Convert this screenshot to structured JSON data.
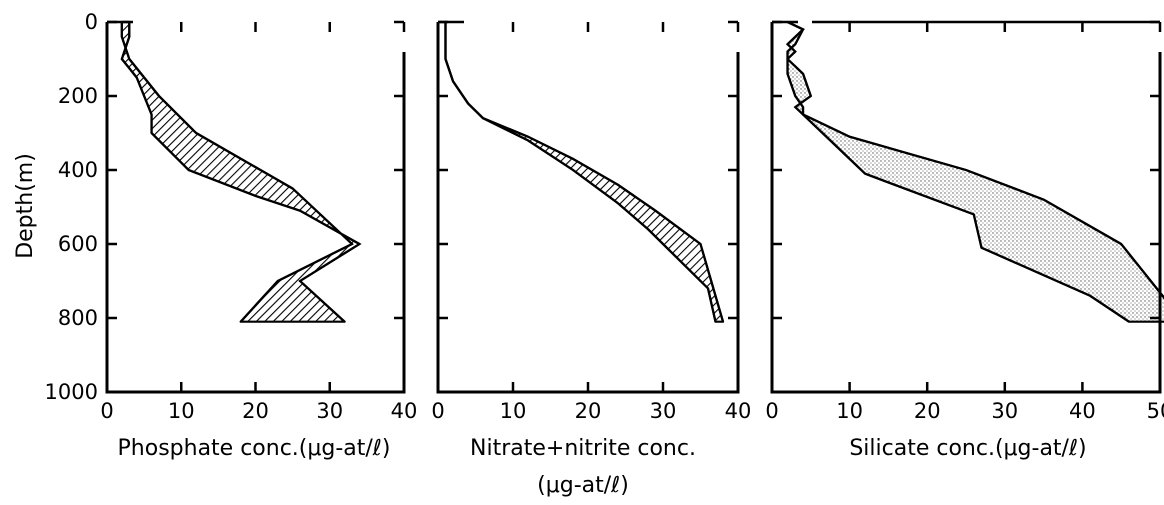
{
  "chart_data": [
    {
      "type": "area",
      "ylabel": "Depth(m)",
      "xlabel": "Phosphate conc.(μg-at/ℓ)",
      "xlim": [
        0,
        40
      ],
      "ylim": [
        1000,
        0
      ],
      "xticks": [
        "0",
        "10",
        "20",
        "30",
        "40"
      ],
      "yticks": [
        "0",
        "200",
        "400",
        "600",
        "800",
        "1000"
      ],
      "fill": "hatch",
      "series": [
        {
          "x": [
            2,
            3,
            3,
            2,
            4,
            6,
            6,
            11,
            20,
            26,
            34,
            26,
            32
          ],
          "y": [
            0,
            0,
            40,
            100,
            150,
            250,
            300,
            400,
            470,
            510,
            600,
            700,
            810
          ]
        },
        {
          "x": [
            2,
            2,
            3,
            7,
            12,
            25,
            33,
            23,
            18
          ],
          "y": [
            0,
            40,
            100,
            200,
            300,
            450,
            600,
            700,
            810
          ]
        }
      ]
    },
    {
      "type": "area",
      "xlabel": "Nitrate+nitrite conc.",
      "xlabel_line2": "(μg-at/ℓ)",
      "xlim": [
        0,
        40
      ],
      "ylim": [
        1000,
        0
      ],
      "xticks": [
        "0",
        "10",
        "20",
        "30",
        "40"
      ],
      "fill": "hatch",
      "series": [
        {
          "x": [
            1,
            1,
            2,
            4,
            6,
            12,
            18,
            24,
            29,
            35,
            38
          ],
          "y": [
            0,
            100,
            160,
            220,
            260,
            310,
            370,
            440,
            510,
            600,
            810
          ]
        },
        {
          "x": [
            1,
            1,
            2,
            4,
            6,
            12,
            18,
            24,
            28,
            36,
            37
          ],
          "y": [
            0,
            100,
            160,
            220,
            260,
            320,
            400,
            490,
            560,
            720,
            810
          ]
        }
      ]
    },
    {
      "type": "area",
      "xlabel": "Silicate conc.(μg-at/ℓ)",
      "xlim": [
        0,
        50
      ],
      "ylim": [
        1000,
        0
      ],
      "xticks": [
        "0",
        "10",
        "20",
        "30",
        "40",
        "50"
      ],
      "fill": "dots",
      "series": [
        {
          "x": [
            2,
            4,
            3,
            2,
            2,
            4,
            5,
            3,
            4,
            10,
            25,
            35,
            45,
            53
          ],
          "y": [
            0,
            20,
            60,
            80,
            100,
            140,
            200,
            230,
            250,
            310,
            400,
            480,
            600,
            810
          ]
        },
        {
          "x": [
            2,
            4,
            2,
            3,
            2,
            2,
            3,
            4,
            4,
            12,
            26,
            27,
            41,
            46
          ],
          "y": [
            0,
            20,
            60,
            80,
            100,
            140,
            200,
            230,
            250,
            410,
            520,
            610,
            740,
            810
          ]
        }
      ]
    }
  ]
}
